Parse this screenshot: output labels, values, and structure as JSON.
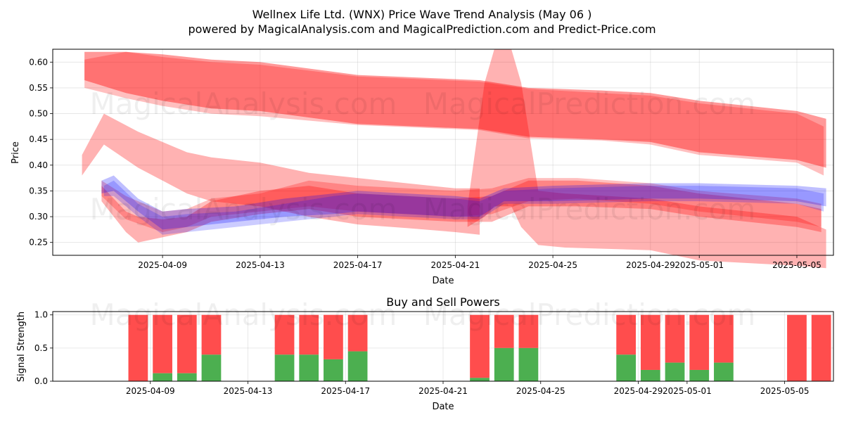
{
  "title_line1": "Wellnex Life Ltd. (WNX) Price Wave Trend Analysis (May 06 )",
  "title_line2": "powered by MagicalAnalysis.com and MagicalPrediction.com and Predict-Price.com",
  "watermarks": [
    "MagicalAnalysis.com",
    "MagicalPrediction.com"
  ],
  "colors": {
    "red": "#ff0000",
    "blue": "#0000ff",
    "buy": "#4caf50",
    "sell": "#ff4d4d"
  },
  "chart_data": [
    {
      "type": "area",
      "title": "",
      "xlabel": "Date",
      "ylabel": "Price",
      "xlim_days": [
        -4.5,
        27.5
      ],
      "ylim": [
        0.225,
        0.625
      ],
      "x_ticks": [
        {
          "day": 0,
          "label": "2025-04-09"
        },
        {
          "day": 4,
          "label": "2025-04-13"
        },
        {
          "day": 8,
          "label": "2025-04-17"
        },
        {
          "day": 12,
          "label": "2025-04-21"
        },
        {
          "day": 16,
          "label": "2025-04-25"
        },
        {
          "day": 20,
          "label": "2025-04-29"
        },
        {
          "day": 22,
          "label": "2025-05-01"
        },
        {
          "day": 26,
          "label": "2025-05-05"
        }
      ],
      "y_ticks": [
        {
          "value": 0.25,
          "label": "0.25"
        },
        {
          "value": 0.3,
          "label": "0.30"
        },
        {
          "value": 0.35,
          "label": "0.35"
        },
        {
          "value": 0.4,
          "label": "0.40"
        },
        {
          "value": 0.45,
          "label": "0.45"
        },
        {
          "value": 0.5,
          "label": "0.50"
        },
        {
          "value": 0.55,
          "label": "0.55"
        },
        {
          "value": 0.6,
          "label": "0.60"
        }
      ],
      "series": [
        {
          "name": "upper-red-wave",
          "color": "red",
          "opacity": 0.4,
          "x": [
            -3.2,
            -1.5,
            0,
            2,
            4,
            8,
            13,
            15,
            18,
            20,
            22,
            26,
            27.2
          ],
          "upper": [
            0.62,
            0.62,
            0.615,
            0.605,
            0.6,
            0.575,
            0.565,
            0.55,
            0.545,
            0.54,
            0.525,
            0.505,
            0.49
          ],
          "lower": [
            0.565,
            0.54,
            0.525,
            0.51,
            0.505,
            0.48,
            0.47,
            0.455,
            0.45,
            0.445,
            0.425,
            0.41,
            0.395
          ]
        },
        {
          "name": "upper-red-wave-2",
          "color": "red",
          "opacity": 0.25,
          "x": [
            -3.2,
            -1.5,
            0,
            2,
            4,
            8,
            13,
            15,
            18,
            20,
            22,
            26,
            27.1
          ],
          "upper": [
            0.605,
            0.62,
            0.61,
            0.6,
            0.595,
            0.572,
            0.562,
            0.548,
            0.54,
            0.535,
            0.52,
            0.5,
            0.475
          ],
          "lower": [
            0.55,
            0.53,
            0.515,
            0.5,
            0.495,
            0.478,
            0.468,
            0.452,
            0.448,
            0.44,
            0.42,
            0.405,
            0.38
          ]
        },
        {
          "name": "spike-red-wave",
          "color": "red",
          "opacity": 0.3,
          "x": [
            12.5,
            13.2,
            13.6,
            14.3,
            14.7,
            15.4,
            16.5,
            20,
            22,
            26,
            27.2
          ],
          "upper": [
            0.32,
            0.56,
            0.625,
            0.625,
            0.56,
            0.35,
            0.345,
            0.335,
            0.32,
            0.3,
            0.275
          ],
          "lower": [
            0.28,
            0.3,
            0.32,
            0.32,
            0.28,
            0.245,
            0.24,
            0.235,
            0.215,
            0.205,
            0.2
          ]
        },
        {
          "name": "lower-red-wave",
          "color": "red",
          "opacity": 0.3,
          "x": [
            -3.3,
            -2.4,
            -1,
            0,
            1,
            2,
            4,
            6,
            8,
            10,
            12,
            13
          ],
          "upper": [
            0.42,
            0.5,
            0.465,
            0.445,
            0.425,
            0.415,
            0.405,
            0.385,
            0.375,
            0.365,
            0.355,
            0.355
          ],
          "lower": [
            0.38,
            0.44,
            0.395,
            0.37,
            0.345,
            0.33,
            0.32,
            0.3,
            0.285,
            0.278,
            0.27,
            0.265
          ]
        },
        {
          "name": "mid-red-wave",
          "color": "red",
          "opacity": 0.3,
          "x": [
            -2.5,
            -1.5,
            -1,
            0,
            1,
            2,
            4,
            6,
            8,
            10,
            12,
            13.5,
            15,
            17,
            20,
            22,
            26,
            27
          ],
          "upper": [
            0.36,
            0.31,
            0.3,
            0.295,
            0.3,
            0.33,
            0.35,
            0.36,
            0.345,
            0.34,
            0.335,
            0.34,
            0.37,
            0.37,
            0.36,
            0.345,
            0.325,
            0.315
          ],
          "lower": [
            0.33,
            0.27,
            0.25,
            0.26,
            0.27,
            0.29,
            0.305,
            0.315,
            0.3,
            0.295,
            0.29,
            0.29,
            0.32,
            0.32,
            0.315,
            0.3,
            0.28,
            0.27
          ]
        },
        {
          "name": "mid-red-wave-2",
          "color": "red",
          "opacity": 0.25,
          "x": [
            -2.5,
            -1.5,
            0,
            1,
            2,
            4,
            6,
            8,
            10,
            12,
            13.5,
            15,
            17,
            20,
            22,
            26,
            27
          ],
          "upper": [
            0.37,
            0.34,
            0.31,
            0.315,
            0.335,
            0.345,
            0.37,
            0.36,
            0.355,
            0.35,
            0.355,
            0.375,
            0.375,
            0.365,
            0.35,
            0.335,
            0.325
          ],
          "lower": [
            0.34,
            0.295,
            0.27,
            0.28,
            0.3,
            0.31,
            0.32,
            0.31,
            0.305,
            0.3,
            0.305,
            0.33,
            0.335,
            0.325,
            0.31,
            0.29,
            0.28
          ]
        },
        {
          "name": "blue-wave",
          "color": "blue",
          "opacity": 0.25,
          "x": [
            -2.5,
            -2.0,
            -1,
            0,
            1,
            3,
            5,
            7,
            8,
            10,
            12,
            13,
            14,
            16,
            20,
            22,
            26,
            27.2
          ],
          "upper": [
            0.37,
            0.38,
            0.335,
            0.31,
            0.315,
            0.32,
            0.335,
            0.345,
            0.35,
            0.345,
            0.34,
            0.335,
            0.355,
            0.36,
            0.365,
            0.365,
            0.36,
            0.355
          ],
          "lower": [
            0.345,
            0.35,
            0.31,
            0.275,
            0.28,
            0.29,
            0.3,
            0.305,
            0.31,
            0.305,
            0.3,
            0.3,
            0.33,
            0.33,
            0.335,
            0.335,
            0.33,
            0.32
          ]
        },
        {
          "name": "blue-wave-2",
          "color": "blue",
          "opacity": 0.2,
          "x": [
            -2.4,
            -2.0,
            -1,
            0,
            1,
            3,
            5,
            7,
            8,
            10,
            12,
            13,
            14,
            16,
            20,
            22,
            26,
            27.1
          ],
          "upper": [
            0.36,
            0.37,
            0.325,
            0.3,
            0.305,
            0.31,
            0.325,
            0.34,
            0.345,
            0.34,
            0.335,
            0.33,
            0.35,
            0.355,
            0.36,
            0.36,
            0.355,
            0.345
          ],
          "lower": [
            0.34,
            0.34,
            0.3,
            0.265,
            0.27,
            0.28,
            0.29,
            0.3,
            0.305,
            0.3,
            0.295,
            0.295,
            0.325,
            0.325,
            0.33,
            0.33,
            0.325,
            0.31
          ]
        }
      ]
    },
    {
      "type": "bar",
      "title": "Buy and Sell Powers",
      "xlabel": "Date",
      "ylabel": "Signal Strength",
      "xlim_days": [
        -4.5,
        27.5
      ],
      "ylim": [
        0,
        1.05
      ],
      "x_ticks": [
        {
          "day": 0,
          "label": "2025-04-09"
        },
        {
          "day": 4,
          "label": "2025-04-13"
        },
        {
          "day": 8,
          "label": "2025-04-17"
        },
        {
          "day": 12,
          "label": "2025-04-21"
        },
        {
          "day": 16,
          "label": "2025-04-25"
        },
        {
          "day": 20,
          "label": "2025-04-29"
        },
        {
          "day": 22,
          "label": "2025-05-01"
        },
        {
          "day": 26,
          "label": "2025-05-05"
        }
      ],
      "y_ticks": [
        {
          "value": 0.0,
          "label": "0.0"
        },
        {
          "value": 0.5,
          "label": "0.5"
        },
        {
          "value": 1.0,
          "label": "1.0"
        }
      ],
      "bars": [
        {
          "day": -1,
          "buy": 0.0
        },
        {
          "day": 0,
          "buy": 0.12
        },
        {
          "day": 1,
          "buy": 0.12
        },
        {
          "day": 2,
          "buy": 0.4
        },
        {
          "day": 5,
          "buy": 0.4
        },
        {
          "day": 6,
          "buy": 0.4
        },
        {
          "day": 7,
          "buy": 0.33
        },
        {
          "day": 8,
          "buy": 0.45
        },
        {
          "day": 13,
          "buy": 0.05
        },
        {
          "day": 14,
          "buy": 0.5
        },
        {
          "day": 15,
          "buy": 0.5
        },
        {
          "day": 19,
          "buy": 0.4
        },
        {
          "day": 20,
          "buy": 0.17
        },
        {
          "day": 21,
          "buy": 0.28
        },
        {
          "day": 22,
          "buy": 0.17
        },
        {
          "day": 23,
          "buy": 0.28
        },
        {
          "day": 26,
          "buy": 0.0
        },
        {
          "day": 27,
          "buy": 0.0
        }
      ],
      "total": 1.0,
      "series_names": [
        "Buy",
        "Sell"
      ]
    }
  ]
}
